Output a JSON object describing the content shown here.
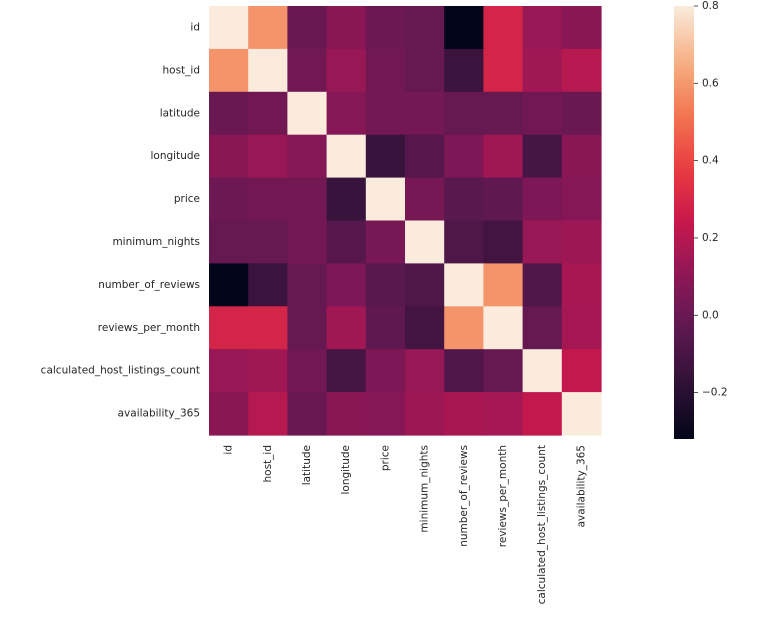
{
  "chart_data": {
    "type": "heatmap",
    "title": "",
    "xlabel": "",
    "ylabel": "",
    "x": [
      "id",
      "host_id",
      "latitude",
      "longitude",
      "price",
      "minimum_nights",
      "number_of_reviews",
      "reviews_per_month",
      "calculated_host_listings_count",
      "availability_365"
    ],
    "y": [
      "id",
      "host_id",
      "latitude",
      "longitude",
      "price",
      "minimum_nights",
      "number_of_reviews",
      "reviews_per_month",
      "calculated_host_listings_count",
      "availability_365"
    ],
    "values": [
      [
        1.0,
        0.59,
        0.0,
        0.09,
        0.01,
        -0.01,
        -0.32,
        0.29,
        0.13,
        0.09
      ],
      [
        0.59,
        1.0,
        0.02,
        0.13,
        0.02,
        -0.01,
        -0.14,
        0.29,
        0.15,
        0.2
      ],
      [
        0.0,
        0.02,
        1.0,
        0.08,
        0.03,
        0.03,
        -0.01,
        -0.01,
        0.02,
        0.0
      ],
      [
        0.09,
        0.13,
        0.08,
        1.0,
        -0.15,
        -0.06,
        0.06,
        0.15,
        -0.11,
        0.09
      ],
      [
        0.01,
        0.02,
        0.03,
        -0.15,
        1.0,
        0.04,
        -0.05,
        -0.03,
        0.06,
        0.08
      ],
      [
        -0.01,
        -0.01,
        0.03,
        -0.06,
        0.04,
        1.0,
        -0.08,
        -0.12,
        0.13,
        0.14
      ],
      [
        -0.32,
        -0.14,
        -0.01,
        0.06,
        -0.05,
        -0.08,
        1.0,
        0.59,
        -0.07,
        0.17
      ],
      [
        0.29,
        0.29,
        -0.01,
        0.15,
        -0.03,
        -0.12,
        0.59,
        1.0,
        -0.01,
        0.16
      ],
      [
        0.13,
        0.15,
        0.02,
        -0.11,
        0.06,
        0.13,
        -0.07,
        -0.01,
        1.0,
        0.23
      ],
      [
        0.09,
        0.2,
        0.0,
        0.09,
        0.08,
        0.14,
        0.17,
        0.16,
        0.23,
        1.0
      ]
    ],
    "vmin": -0.32,
    "vmax": 0.8,
    "colormap": "rocket",
    "colorbar": {
      "ticks": [
        -0.2,
        0.0,
        0.2,
        0.4,
        0.6,
        0.8
      ],
      "tick_labels": [
        "−0.2",
        "0.0",
        "0.2",
        "0.4",
        "0.6",
        "0.8"
      ]
    },
    "grid": false,
    "legend": "colorbar-right"
  }
}
